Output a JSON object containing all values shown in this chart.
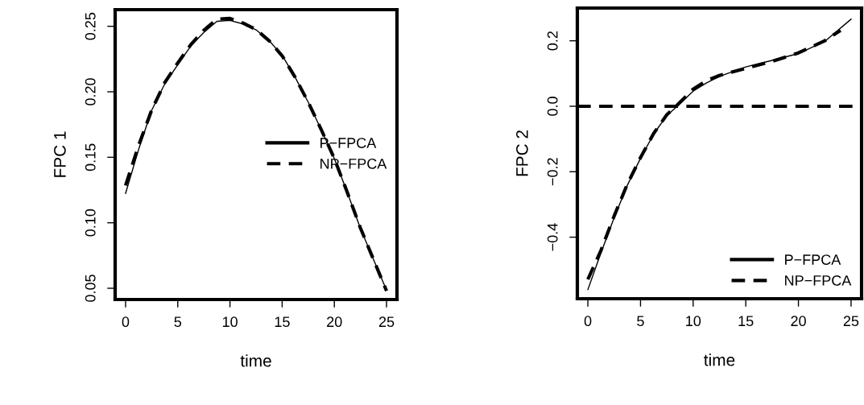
{
  "chart_data": [
    {
      "type": "line",
      "xlabel": "time",
      "ylabel": "FPC 1",
      "xlim": [
        -1,
        26
      ],
      "ylim": [
        0.0414,
        0.2627
      ],
      "xticks": [
        0,
        5,
        10,
        15,
        20,
        25
      ],
      "yticks": [
        {
          "value": 0.05,
          "label": "0.05"
        },
        {
          "value": 0.1,
          "label": "0.10"
        },
        {
          "value": 0.15,
          "label": "0.15"
        },
        {
          "value": 0.2,
          "label": "0.20"
        },
        {
          "value": 0.25,
          "label": "0.25"
        }
      ],
      "legend": "center right",
      "grid": false,
      "series": [
        {
          "name": "P−FPCA",
          "color": "#000000",
          "line_style": "solid",
          "x": [
            0,
            1.25,
            2.5,
            3.75,
            5,
            6.25,
            7.5,
            8.75,
            10,
            11.25,
            12.5,
            13.75,
            15,
            16.25,
            17.5,
            18.75,
            20,
            21.25,
            22.5,
            23.75,
            25
          ],
          "values": [
            0.1225,
            0.156,
            0.1859,
            0.206,
            0.2207,
            0.235,
            0.2453,
            0.2538,
            0.2545,
            0.2518,
            0.2473,
            0.239,
            0.2279,
            0.211,
            0.192,
            0.171,
            0.149,
            0.123,
            0.0957,
            0.072,
            0.0486
          ]
        },
        {
          "name": "NP−FPCA",
          "color": "#000000",
          "line_style": "dashed",
          "x": [
            0,
            1.25,
            2.5,
            3.75,
            5,
            6.25,
            7.5,
            8.75,
            10,
            11.25,
            12.5,
            13.75,
            15,
            16.25,
            17.5,
            18.75,
            20,
            21.25,
            22.5,
            23.75,
            25
          ],
          "values": [
            0.1285,
            0.159,
            0.186,
            0.207,
            0.222,
            0.236,
            0.247,
            0.2555,
            0.256,
            0.2525,
            0.2475,
            0.239,
            0.2275,
            0.211,
            0.192,
            0.171,
            0.149,
            0.123,
            0.096,
            0.072,
            0.048
          ]
        }
      ]
    },
    {
      "type": "line",
      "xlabel": "time",
      "ylabel": "FPC 2",
      "xlim": [
        -1,
        26
      ],
      "ylim": [
        -0.588,
        0.3
      ],
      "xticks": [
        0,
        5,
        10,
        15,
        20,
        25
      ],
      "yticks": [
        {
          "value": -0.4,
          "label": "−0.4"
        },
        {
          "value": -0.2,
          "label": "−0.2"
        },
        {
          "value": 0,
          "label": "0.0"
        },
        {
          "value": 0.2,
          "label": "0.2"
        }
      ],
      "legend": "lower right",
      "grid": false,
      "ref_lines": [
        {
          "axis": "y",
          "value": 0,
          "color": "#000000",
          "line_style": "dashed"
        }
      ],
      "series": [
        {
          "name": "P−FPCA",
          "color": "#000000",
          "line_style": "solid",
          "x": [
            0,
            1.25,
            2.5,
            3.75,
            5,
            6.25,
            7.5,
            8.5,
            10,
            11.25,
            12.5,
            15,
            17.5,
            20,
            22.5,
            25
          ],
          "values": [
            -0.56,
            -0.447,
            -0.34,
            -0.2415,
            -0.159,
            -0.085,
            -0.028,
            0.0,
            0.046,
            0.071,
            0.091,
            0.12,
            0.14,
            0.161,
            0.198,
            0.266
          ]
        },
        {
          "name": "NP−FPCA",
          "color": "#000000",
          "line_style": "dashed",
          "x": [
            0,
            1.25,
            2.5,
            3.75,
            5,
            6.25,
            7.5,
            8.5,
            10,
            11.25,
            12.5,
            15,
            17.5,
            20,
            22.5,
            24
          ],
          "values": [
            -0.529,
            -0.44,
            -0.335,
            -0.238,
            -0.157,
            -0.083,
            -0.026,
            0.004,
            0.052,
            0.078,
            0.094,
            0.116,
            0.137,
            0.163,
            0.2,
            0.232
          ]
        }
      ]
    }
  ]
}
